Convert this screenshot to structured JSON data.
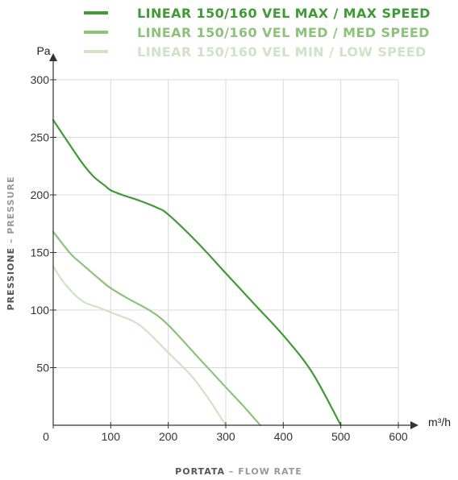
{
  "chart_data": {
    "type": "line",
    "title": "",
    "xlabel_main": "PORTATA",
    "xlabel_sep": " – ",
    "xlabel_sub": "FLOW RATE",
    "ylabel_main": "PRESSIONE",
    "ylabel_sep": " – ",
    "ylabel_sub": "PRESSURE",
    "x_unit": "m³/h",
    "y_unit": "Pa",
    "xlim": [
      0,
      600
    ],
    "ylim": [
      0,
      300
    ],
    "x_ticks": [
      0,
      100,
      200,
      300,
      400,
      500,
      600
    ],
    "x_tick_labels": [
      "0",
      "100",
      "200",
      "300",
      "400",
      "500",
      "600"
    ],
    "y_ticks": [
      50,
      100,
      150,
      200,
      250,
      300
    ],
    "y_tick_labels": [
      "50",
      "100",
      "150",
      "200",
      "250",
      "300"
    ],
    "grid": true,
    "legend_position": "top",
    "series": [
      {
        "name": "LINEAR 150/160 VEL MAX / MAX SPEED",
        "color": "#3f9b35",
        "x": [
          0,
          20,
          50,
          70,
          90,
          100,
          120,
          150,
          180,
          200,
          250,
          300,
          350,
          400,
          450,
          500
        ],
        "y": [
          265,
          250,
          228,
          216,
          208,
          204,
          200,
          195,
          189,
          183,
          159,
          132,
          105,
          78,
          46,
          0
        ]
      },
      {
        "name": "LINEAR 150/160 VEL MED / MED SPEED",
        "color": "#8cc27a",
        "x": [
          0,
          30,
          50,
          80,
          100,
          130,
          170,
          200,
          250,
          300,
          330,
          360
        ],
        "y": [
          168,
          149,
          140,
          127,
          119,
          110,
          99,
          87,
          60,
          33,
          17,
          0
        ]
      },
      {
        "name": "LINEAR 150/160 VEL MIN / LOW SPEED",
        "color": "#cfe4c3",
        "x": [
          0,
          20,
          50,
          80,
          100,
          150,
          200,
          240,
          270,
          300
        ],
        "y": [
          138,
          123,
          108,
          102,
          98,
          87,
          63,
          43,
          23,
          0
        ]
      }
    ]
  }
}
